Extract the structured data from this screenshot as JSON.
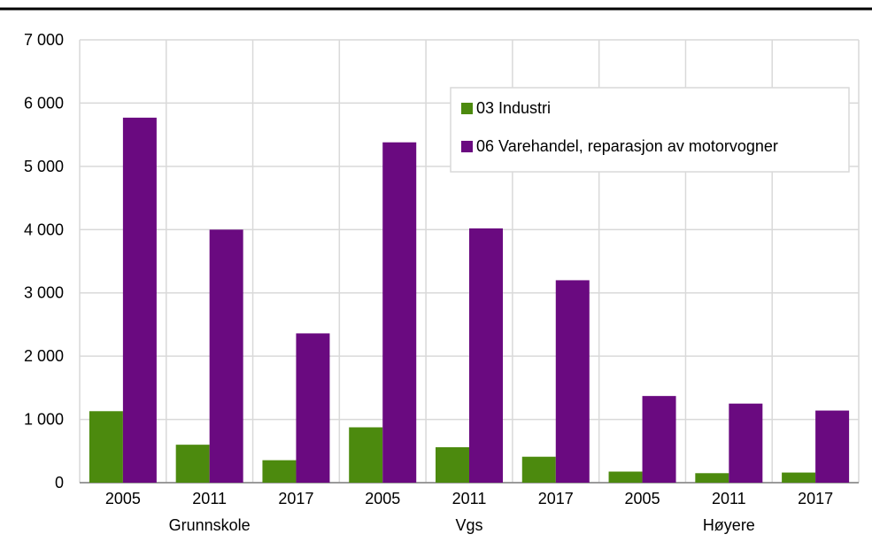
{
  "chart_data": {
    "type": "bar",
    "title": "",
    "xlabel": "",
    "ylabel": "",
    "ylim": [
      0,
      7000
    ],
    "yticks": [
      0,
      1000,
      2000,
      3000,
      4000,
      5000,
      6000,
      7000
    ],
    "ytick_labels": [
      "0",
      "1 000",
      "2 000",
      "3 000",
      "4 000",
      "5 000",
      "6 000",
      "7 000"
    ],
    "categories": [
      "2005",
      "2011",
      "2017",
      "2005",
      "2011",
      "2017",
      "2005",
      "2011",
      "2017"
    ],
    "groups": [
      {
        "label": "Grunnskole",
        "start": 0,
        "end": 2
      },
      {
        "label": "Vgs",
        "start": 3,
        "end": 5
      },
      {
        "label": "Høyere",
        "start": 6,
        "end": 8
      }
    ],
    "series": [
      {
        "name": "03 Industri",
        "color": "#4c8a0e",
        "values": [
          1130,
          600,
          355,
          875,
          560,
          410,
          175,
          150,
          160
        ]
      },
      {
        "name": "06 Varehandel, reparasjon av motorvogner",
        "color": "#6a0a80",
        "values": [
          5770,
          4000,
          2360,
          5380,
          4020,
          3200,
          1370,
          1250,
          1140
        ]
      }
    ],
    "grid": true,
    "legend_position": "top-right"
  }
}
